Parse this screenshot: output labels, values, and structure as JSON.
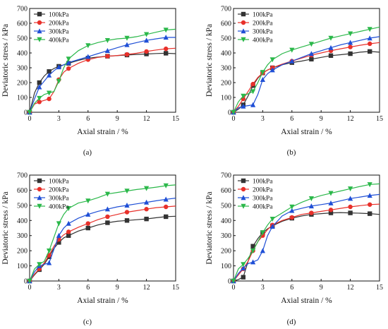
{
  "colors": {
    "100kPa": "#333333",
    "200kPa": "#e8302a",
    "300kPa": "#1f4fd6",
    "400kPa": "#2bb84a",
    "axis": "#111111",
    "background": "#ffffff"
  },
  "markers": {
    "100kPa": "square",
    "200kPa": "circle",
    "300kPa": "triangle-up",
    "400kPa": "triangle-down"
  },
  "chart_data": [
    {
      "panel": "(a)",
      "type": "line",
      "xlabel": "Axial strain / %",
      "ylabel": "Deviatoric stress / kPa",
      "xlim": [
        0,
        15
      ],
      "ylim": [
        0,
        700
      ],
      "xticks": [
        "0",
        "3",
        "6",
        "9",
        "12",
        "15"
      ],
      "yticks": [
        "0",
        "100",
        "200",
        "300",
        "400",
        "500",
        "600",
        "700"
      ],
      "grid": false,
      "legend": "top-left",
      "series": [
        {
          "name": "100kPa",
          "x": [
            0,
            0.5,
            1,
            1.5,
            2,
            2.5,
            3,
            3.5,
            4,
            5,
            6,
            7,
            8,
            9,
            10,
            11,
            12,
            13,
            14,
            15
          ],
          "y": [
            0,
            130,
            200,
            245,
            275,
            295,
            310,
            320,
            330,
            350,
            365,
            372,
            378,
            382,
            386,
            390,
            393,
            396,
            398,
            395
          ]
        },
        {
          "name": "200kPa",
          "x": [
            0,
            0.5,
            1,
            1.5,
            2,
            2.5,
            3,
            3.5,
            4,
            5,
            6,
            7,
            8,
            9,
            10,
            11,
            12,
            13,
            14,
            15
          ],
          "y": [
            0,
            55,
            70,
            80,
            90,
            140,
            220,
            270,
            295,
            330,
            355,
            370,
            378,
            383,
            390,
            398,
            410,
            420,
            428,
            432
          ]
        },
        {
          "name": "300kPa",
          "x": [
            0,
            0.5,
            1,
            1.5,
            2,
            2.5,
            3,
            3.5,
            4,
            5,
            6,
            7,
            8,
            9,
            10,
            11,
            12,
            13,
            14,
            15
          ],
          "y": [
            0,
            90,
            170,
            210,
            250,
            280,
            305,
            320,
            335,
            355,
            375,
            395,
            415,
            435,
            455,
            470,
            485,
            495,
            505,
            505
          ]
        },
        {
          "name": "400kPa",
          "x": [
            0,
            0.5,
            1,
            1.5,
            2,
            2.5,
            3,
            3.5,
            4,
            5,
            6,
            7,
            8,
            9,
            10,
            11,
            12,
            13,
            14,
            15
          ],
          "y": [
            0,
            60,
            95,
            120,
            130,
            140,
            210,
            300,
            360,
            415,
            450,
            470,
            485,
            495,
            500,
            510,
            525,
            540,
            555,
            560
          ]
        }
      ]
    },
    {
      "panel": "(b)",
      "type": "line",
      "xlabel": "Axial strain / %",
      "ylabel": "Deviatoric stress / kPa",
      "xlim": [
        0,
        15
      ],
      "ylim": [
        0,
        700
      ],
      "xticks": [
        "0",
        "3",
        "6",
        "9",
        "12",
        "15"
      ],
      "yticks": [
        "0",
        "100",
        "200",
        "300",
        "400",
        "500",
        "600",
        "700"
      ],
      "grid": false,
      "legend": "top-left",
      "series": [
        {
          "name": "100kPa",
          "x": [
            0,
            0.5,
            1,
            1.5,
            2,
            2.5,
            3,
            3.5,
            4,
            5,
            6,
            7,
            8,
            9,
            10,
            11,
            12,
            13,
            14,
            15
          ],
          "y": [
            0,
            20,
            50,
            110,
            180,
            230,
            265,
            285,
            300,
            320,
            335,
            345,
            358,
            370,
            382,
            388,
            395,
            405,
            410,
            405
          ]
        },
        {
          "name": "200kPa",
          "x": [
            0,
            0.5,
            1,
            1.5,
            2,
            2.5,
            3,
            3.5,
            4,
            5,
            6,
            7,
            8,
            9,
            10,
            11,
            12,
            13,
            14,
            15
          ],
          "y": [
            0,
            40,
            90,
            140,
            190,
            235,
            265,
            285,
            300,
            325,
            345,
            365,
            385,
            400,
            415,
            428,
            440,
            452,
            462,
            470
          ]
        },
        {
          "name": "300kPa",
          "x": [
            0,
            0.5,
            1,
            1.5,
            2,
            2.5,
            3,
            3.5,
            4,
            5,
            6,
            7,
            8,
            9,
            10,
            11,
            12,
            13,
            14,
            15
          ],
          "y": [
            0,
            30,
            40,
            45,
            50,
            120,
            220,
            260,
            285,
            320,
            345,
            370,
            395,
            415,
            435,
            455,
            470,
            485,
            500,
            510
          ]
        },
        {
          "name": "400kPa",
          "x": [
            0,
            0.5,
            1,
            1.5,
            2,
            2.5,
            3,
            3.5,
            4,
            5,
            6,
            7,
            8,
            9,
            10,
            11,
            12,
            13,
            14,
            15
          ],
          "y": [
            0,
            70,
            110,
            125,
            140,
            200,
            270,
            320,
            355,
            395,
            420,
            440,
            460,
            480,
            500,
            515,
            530,
            545,
            560,
            575
          ]
        }
      ]
    },
    {
      "panel": "(c)",
      "type": "line",
      "xlabel": "Axial strain / %",
      "ylabel": "Deviatoric stress / kPa",
      "xlim": [
        0,
        15
      ],
      "ylim": [
        0,
        700
      ],
      "xticks": [
        "0",
        "3",
        "6",
        "9",
        "12",
        "15"
      ],
      "yticks": [
        "0",
        "100",
        "200",
        "300",
        "400",
        "500",
        "600",
        "700"
      ],
      "grid": false,
      "legend": "top-left",
      "series": [
        {
          "name": "100kPa",
          "x": [
            0,
            0.5,
            1,
            1.5,
            2,
            2.5,
            3,
            3.5,
            4,
            5,
            6,
            7,
            8,
            9,
            10,
            11,
            12,
            13,
            14,
            15
          ],
          "y": [
            0,
            40,
            75,
            110,
            160,
            215,
            255,
            285,
            300,
            330,
            350,
            370,
            385,
            395,
            400,
            405,
            410,
            418,
            425,
            428
          ]
        },
        {
          "name": "200kPa",
          "x": [
            0,
            0.5,
            1,
            1.5,
            2,
            2.5,
            3,
            3.5,
            4,
            5,
            6,
            7,
            8,
            9,
            10,
            11,
            12,
            13,
            14,
            15
          ],
          "y": [
            0,
            45,
            80,
            120,
            170,
            230,
            275,
            305,
            325,
            355,
            380,
            405,
            425,
            440,
            455,
            465,
            475,
            485,
            490,
            495
          ]
        },
        {
          "name": "300kPa",
          "x": [
            0,
            0.5,
            1,
            1.5,
            2,
            2.5,
            3,
            3.5,
            4,
            5,
            6,
            7,
            8,
            9,
            10,
            11,
            12,
            13,
            14,
            15
          ],
          "y": [
            0,
            60,
            100,
            110,
            120,
            210,
            300,
            350,
            380,
            415,
            440,
            460,
            475,
            490,
            500,
            510,
            520,
            530,
            540,
            548
          ]
        },
        {
          "name": "400kPa",
          "x": [
            0,
            0.5,
            1,
            1.5,
            2,
            2.5,
            3,
            3.5,
            4,
            5,
            6,
            7,
            8,
            9,
            10,
            11,
            12,
            13,
            14,
            15
          ],
          "y": [
            0,
            80,
            110,
            130,
            200,
            290,
            380,
            440,
            480,
            515,
            530,
            550,
            575,
            585,
            595,
            605,
            612,
            620,
            630,
            635
          ]
        }
      ]
    },
    {
      "panel": "(d)",
      "type": "line",
      "xlabel": "Axial strain / %",
      "ylabel": "Deviatoric stress / kPa",
      "xlim": [
        0,
        15
      ],
      "ylim": [
        0,
        700
      ],
      "xticks": [
        "0",
        "3",
        "6",
        "9",
        "12",
        "15"
      ],
      "yticks": [
        "0",
        "100",
        "200",
        "300",
        "400",
        "500",
        "600",
        "700"
      ],
      "grid": false,
      "legend": "top-left",
      "series": [
        {
          "name": "100kPa",
          "x": [
            0,
            0.5,
            1,
            1.5,
            2,
            2.5,
            3,
            3.5,
            4,
            5,
            6,
            7,
            8,
            9,
            10,
            11,
            12,
            13,
            14,
            15
          ],
          "y": [
            0,
            10,
            25,
            130,
            230,
            280,
            320,
            345,
            365,
            395,
            415,
            430,
            440,
            445,
            450,
            452,
            450,
            448,
            445,
            440
          ]
        },
        {
          "name": "200kPa",
          "x": [
            0,
            0.5,
            1,
            1.5,
            2,
            2.5,
            3,
            3.5,
            4,
            5,
            6,
            7,
            8,
            9,
            10,
            11,
            12,
            13,
            14,
            15
          ],
          "y": [
            0,
            40,
            80,
            130,
            200,
            260,
            300,
            340,
            370,
            400,
            420,
            440,
            450,
            460,
            470,
            480,
            490,
            498,
            505,
            508
          ]
        },
        {
          "name": "300kPa",
          "x": [
            0,
            0.5,
            1,
            1.5,
            2,
            2.5,
            3,
            3.5,
            4,
            5,
            6,
            7,
            8,
            9,
            10,
            11,
            12,
            13,
            14,
            15
          ],
          "y": [
            0,
            50,
            85,
            115,
            125,
            140,
            200,
            300,
            360,
            430,
            465,
            480,
            495,
            505,
            515,
            530,
            545,
            555,
            565,
            572
          ]
        },
        {
          "name": "400kPa",
          "x": [
            0,
            0.5,
            1,
            1.5,
            2,
            2.5,
            3,
            3.5,
            4,
            5,
            6,
            7,
            8,
            9,
            10,
            11,
            12,
            13,
            14,
            15
          ],
          "y": [
            0,
            80,
            110,
            150,
            200,
            260,
            320,
            370,
            410,
            450,
            490,
            520,
            545,
            565,
            580,
            595,
            610,
            625,
            638,
            642
          ]
        }
      ]
    }
  ]
}
